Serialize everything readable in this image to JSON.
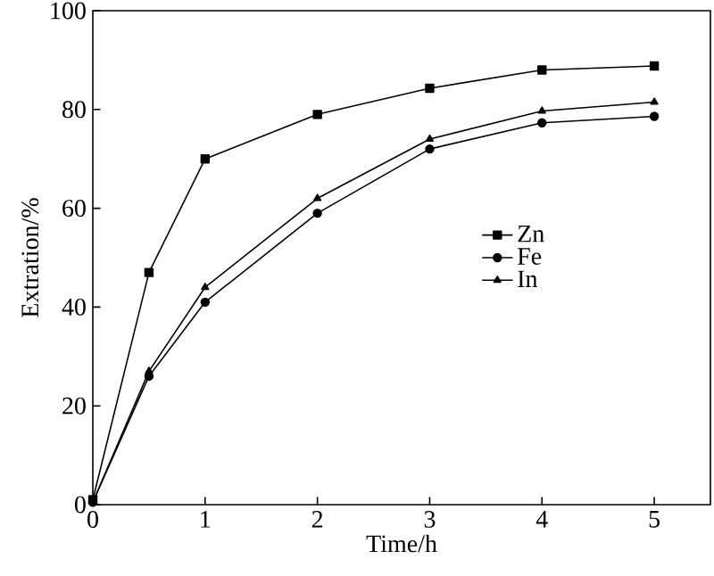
{
  "chart_data": {
    "type": "line",
    "xlabel": "Time/h",
    "ylabel": "Extration/%",
    "xlim": [
      0,
      5.5
    ],
    "ylim": [
      0,
      100
    ],
    "xticks": [
      0,
      1,
      2,
      3,
      4,
      5
    ],
    "yticks": [
      0,
      20,
      40,
      60,
      80,
      100
    ],
    "legend": "right",
    "line_style": "solid",
    "series": [
      {
        "name": "Zn",
        "color": "#000000",
        "marker": "square",
        "x": [
          0,
          0.5,
          1,
          2,
          3,
          4,
          5
        ],
        "values": [
          1,
          47,
          70,
          79,
          84.3,
          88,
          88.8
        ]
      },
      {
        "name": "Fe",
        "color": "#000000",
        "marker": "circle",
        "x": [
          0,
          0.5,
          1,
          2,
          3,
          4,
          5
        ],
        "values": [
          0.5,
          26,
          41,
          59,
          72,
          77.3,
          78.6
        ]
      },
      {
        "name": "In",
        "color": "#000000",
        "marker": "triangle",
        "x": [
          0,
          0.5,
          1,
          2,
          3,
          4,
          5
        ],
        "values": [
          0.5,
          27,
          44,
          62,
          74,
          79.7,
          81.5
        ]
      }
    ]
  }
}
